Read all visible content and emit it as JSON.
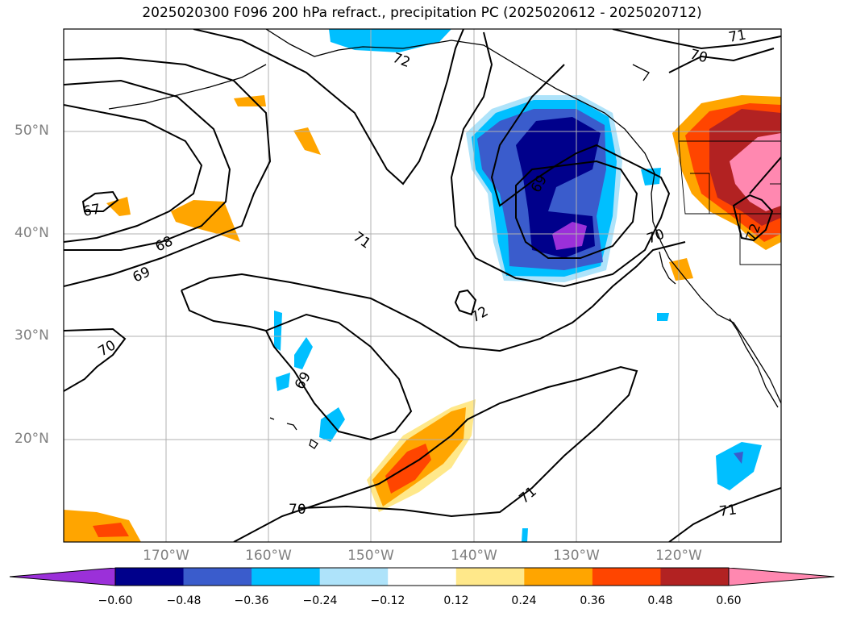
{
  "title": "2025020300 F096 200 hPa refract., precipitation PC (2025020612 - 2025020712)",
  "map": {
    "projection": "PlateCarree",
    "lon_range": [
      -180,
      -110
    ],
    "lat_range": [
      10,
      60
    ],
    "grid": true,
    "lat_labels": [
      "50°N",
      "40°N",
      "30°N",
      "20°N"
    ],
    "lon_labels": [
      "170°W",
      "160°W",
      "150°W",
      "140°W",
      "130°W",
      "120°W"
    ],
    "contour_labels": [
      "72",
      "71",
      "70",
      "69",
      "68",
      "67",
      "72",
      "71",
      "70",
      "69",
      "70",
      "71",
      "69",
      "70",
      "71",
      "72"
    ]
  },
  "colorbar": {
    "ticks": [
      "−0.60",
      "−0.48",
      "−0.36",
      "−0.24",
      "−0.12",
      "0.12",
      "0.24",
      "0.36",
      "0.48",
      "0.60"
    ],
    "colors": [
      "#9b30d9",
      "#00008b",
      "#3a5ccc",
      "#00bfff",
      "#aee3fa",
      "#ffffff",
      "#ffe88a",
      "#ffa500",
      "#ff4500",
      "#b22222",
      "#ff88b0"
    ],
    "extend": "both"
  }
}
